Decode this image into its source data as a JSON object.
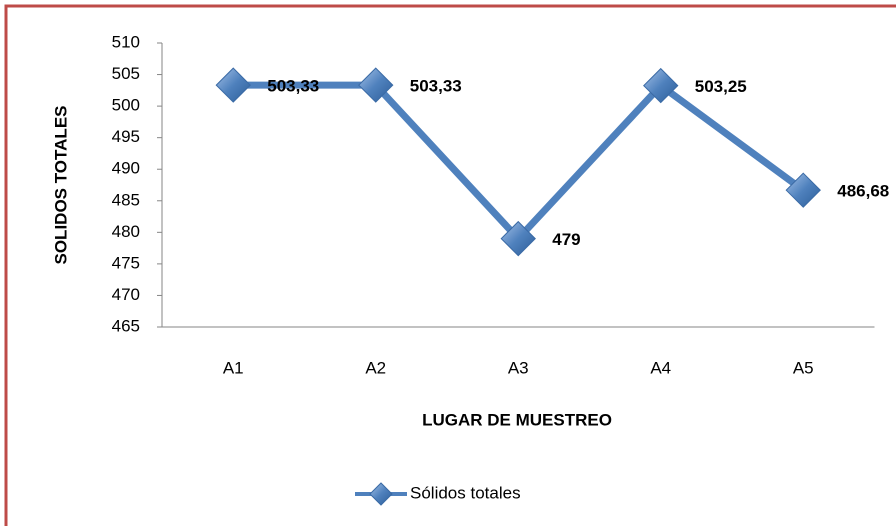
{
  "chart_data": {
    "type": "line",
    "categories": [
      "A1",
      "A2",
      "A3",
      "A4",
      "A5"
    ],
    "series": [
      {
        "name": "Sólidos totales",
        "color": "#4f81bd",
        "values": [
          503.33,
          503.33,
          479,
          503.25,
          486.68
        ],
        "value_labels": [
          "503,33",
          "503,33",
          "479",
          "503,25",
          "486,68"
        ]
      }
    ],
    "ylim": [
      465,
      510
    ],
    "yticks": [
      465,
      470,
      475,
      480,
      485,
      490,
      495,
      500,
      505,
      510
    ],
    "y_label": "SOLIDOS TOTALES",
    "x_label": "LUGAR DE MUESTREO",
    "grid": false,
    "legend": "bottom"
  }
}
